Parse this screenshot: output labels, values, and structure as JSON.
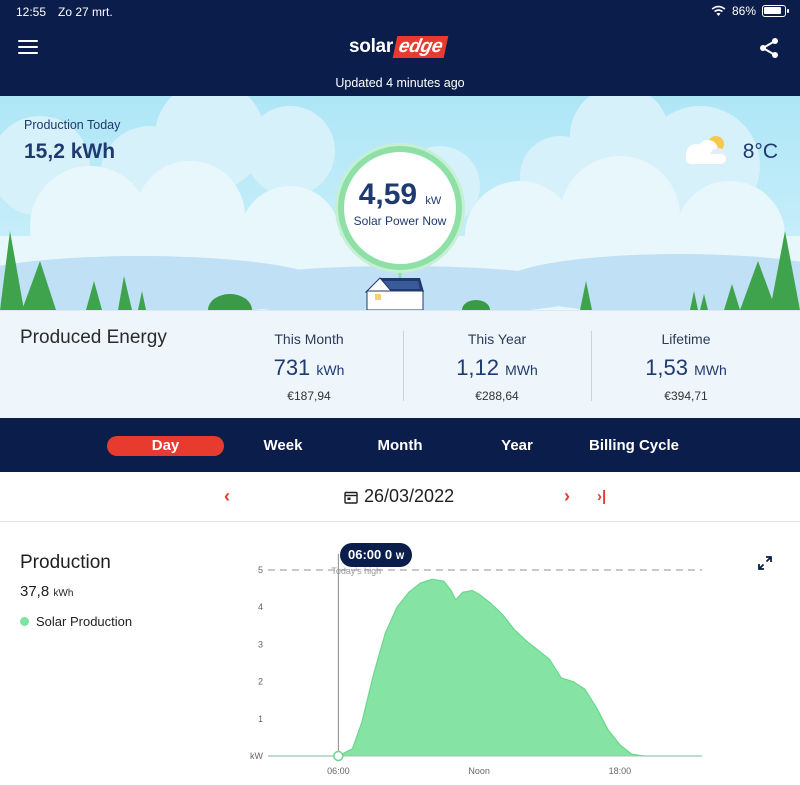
{
  "status_bar": {
    "time": "12:55",
    "date": "Zo 27 mrt.",
    "battery": "86%"
  },
  "header": {
    "logo_part1": "solar",
    "logo_part2": "edge",
    "updated": "Updated 4 minutes ago"
  },
  "hero": {
    "production_today_label": "Production Today",
    "production_today_value": "15,2 kWh",
    "temperature": "8°C",
    "power_value": "4,59",
    "power_unit": "kW",
    "power_label": "Solar Power Now"
  },
  "energy": {
    "title": "Produced Energy",
    "columns": [
      {
        "label": "This Month",
        "value": "731",
        "unit": "kWh",
        "money": "€187,94"
      },
      {
        "label": "This Year",
        "value": "1,12",
        "unit": "MWh",
        "money": "€288,64"
      },
      {
        "label": "Lifetime",
        "value": "1,53",
        "unit": "MWh",
        "money": "€394,71"
      }
    ]
  },
  "tabs": [
    "Day",
    "Week",
    "Month",
    "Year",
    "Billing Cycle"
  ],
  "date_nav": {
    "date": "26/03/2022"
  },
  "production": {
    "title": "Production",
    "value": "37,8",
    "unit": "kWh",
    "legend": "Solar Production"
  },
  "colors": {
    "navy": "#0b1d4a",
    "accent": "#e63b2e",
    "production_green": "#7fe3a0"
  },
  "chart_data": {
    "type": "area",
    "xlabel": "",
    "ylabel": "kW",
    "x_ticks": [
      "06:00",
      "Noon",
      "18:00"
    ],
    "y_ticks": [
      1,
      2,
      3,
      4,
      5
    ],
    "ylim": [
      0,
      5
    ],
    "reference_line": {
      "label": "Today's high",
      "value": 5
    },
    "tooltip": {
      "time": "06:00",
      "value": "0",
      "unit": "W"
    },
    "series": [
      {
        "name": "Solar Production",
        "x": [
          3.0,
          6.0,
          6.6,
          7.0,
          7.5,
          8.0,
          8.5,
          9.0,
          9.5,
          10.0,
          10.5,
          10.8,
          11.0,
          11.3,
          11.7,
          12.0,
          12.5,
          13.0,
          13.5,
          14.0,
          14.5,
          15.0,
          15.5,
          16.0,
          16.5,
          17.0,
          17.5,
          18.0,
          18.5,
          19.0,
          21.5
        ],
        "y": [
          0,
          0,
          0.2,
          0.9,
          2.2,
          3.3,
          4.0,
          4.4,
          4.65,
          4.75,
          4.7,
          4.45,
          4.2,
          4.4,
          4.45,
          4.35,
          4.1,
          3.8,
          3.4,
          3.1,
          2.85,
          2.6,
          2.1,
          2.0,
          1.8,
          1.3,
          0.7,
          0.3,
          0.05,
          0,
          0
        ]
      }
    ]
  }
}
